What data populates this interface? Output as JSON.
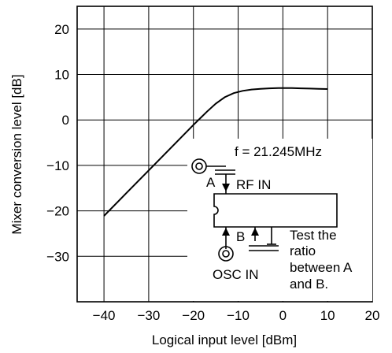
{
  "chart_data": {
    "type": "line",
    "title": "",
    "xlabel": "Logical input level [dBm]",
    "ylabel": "Mixer conversion level [dB]",
    "xlim": [
      -46,
      20
    ],
    "ylim": [
      -40,
      25
    ],
    "x_ticks": [
      -40,
      -30,
      -20,
      -10,
      0,
      10,
      20
    ],
    "y_ticks": [
      -30,
      -20,
      -10,
      0,
      10,
      20
    ],
    "x_tick_labels": [
      "−40",
      "−30",
      "−20",
      "−10",
      "0",
      "10",
      "20"
    ],
    "y_tick_labels": [
      "−30",
      "−20",
      "−10",
      "0",
      "10",
      "20"
    ],
    "grid": true,
    "series": [
      {
        "x": [
          -40,
          -35,
          -30,
          -25,
          -20,
          -17,
          -15,
          -13,
          -11,
          -9,
          -7,
          -5,
          -3,
          -1,
          0,
          2,
          4,
          6,
          8,
          10
        ],
        "y": [
          -21.1,
          -16.1,
          -11.1,
          -6.1,
          -1.1,
          1.8,
          3.6,
          5.0,
          5.9,
          6.4,
          6.7,
          6.85,
          6.95,
          7.0,
          7.0,
          7.0,
          6.95,
          6.9,
          6.85,
          6.8
        ]
      }
    ],
    "annotations": {
      "frequency": "f = 21.245MHz",
      "label_a": "A",
      "rf_in": "RF IN",
      "label_b": "B",
      "osc_in": "OSC IN",
      "note_lines": [
        "Test the",
        "ratio",
        "between A",
        "and B."
      ]
    }
  }
}
